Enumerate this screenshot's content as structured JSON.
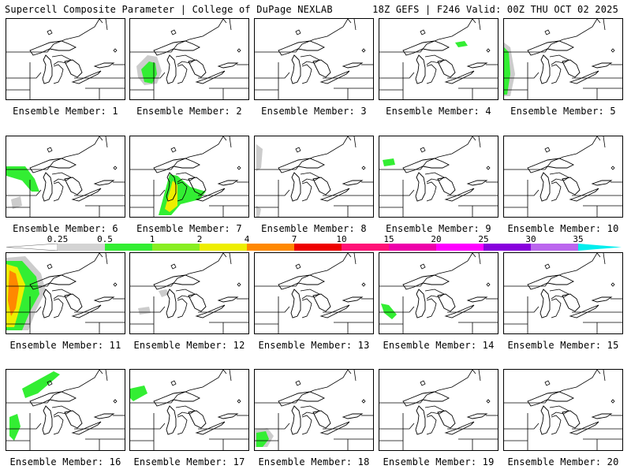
{
  "header": {
    "title": "Supercell Composite Parameter | College of DuPage NEXLAB",
    "valid": "18Z GEFS | F246 Valid: 00Z THU OCT 02 2025"
  },
  "map": {
    "base_shape": "upper-midwest-great-lakes-basemap",
    "line_color": "#000000"
  },
  "colorbar": {
    "labels": [
      "0.25",
      "0.5",
      "1",
      "2",
      "4",
      "7",
      "10",
      "15",
      "20",
      "25",
      "30",
      "35"
    ],
    "colors": [
      "#d3d3d3",
      "#33ee33",
      "#88ee22",
      "#eeee00",
      "#ff8800",
      "#ee0000",
      "#ff1177",
      "#ee00aa",
      "#ff00ff",
      "#8800dd",
      "#bb66ee",
      "#00eeee"
    ]
  },
  "members": [
    {
      "label": "Ensemble Member: 1",
      "blobs": []
    },
    {
      "label": "Ensemble Member: 2",
      "blobs": [
        "gray-w",
        "green-w"
      ]
    },
    {
      "label": "Ensemble Member: 3",
      "blobs": []
    },
    {
      "label": "Ensemble Member: 4",
      "blobs": [
        "green-ne"
      ]
    },
    {
      "label": "Ensemble Member: 5",
      "blobs": [
        "green-wedge"
      ]
    },
    {
      "label": "Ensemble Member: 6",
      "blobs": [
        "green-nw"
      ]
    },
    {
      "label": "Ensemble Member: 7",
      "blobs": [
        "yellow-mi"
      ]
    },
    {
      "label": "Ensemble Member: 8",
      "blobs": [
        "gray-nw"
      ]
    },
    {
      "label": "Ensemble Member: 9",
      "blobs": [
        "green-n"
      ]
    },
    {
      "label": "Ensemble Member: 10",
      "blobs": []
    },
    {
      "label": "Ensemble Member: 11",
      "blobs": [
        "orange-w"
      ]
    },
    {
      "label": "Ensemble Member: 12",
      "blobs": [
        "gray-c"
      ]
    },
    {
      "label": "Ensemble Member: 13",
      "blobs": []
    },
    {
      "label": "Ensemble Member: 14",
      "blobs": [
        "green-sw"
      ]
    },
    {
      "label": "Ensemble Member: 15",
      "blobs": []
    },
    {
      "label": "Ensemble Member: 16",
      "blobs": [
        "green-edge"
      ]
    },
    {
      "label": "Ensemble Member: 17",
      "blobs": [
        "green-nw2"
      ]
    },
    {
      "label": "Ensemble Member: 18",
      "blobs": [
        "green-sw2"
      ]
    },
    {
      "label": "Ensemble Member: 19",
      "blobs": []
    },
    {
      "label": "Ensemble Member: 20",
      "blobs": []
    }
  ]
}
